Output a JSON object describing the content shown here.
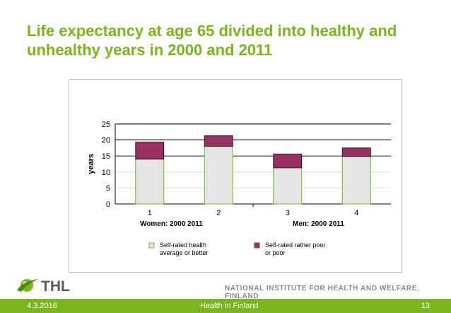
{
  "slide": {
    "title": "Life expectancy at age 65 divided into healthy and unhealthy years in 2000 and 2011"
  },
  "footer": {
    "date": "4.3.2016",
    "center_text": "Health in Finland",
    "page_number": "13",
    "org_name": "NATIONAL INSTITUTE FOR HEALTH AND WELFARE, FINLAND",
    "logo_text": "THL"
  },
  "colors": {
    "accent": "#7ab51d",
    "healthy_fill": "#e5e5e5",
    "healthy_stroke": "#7ab51d",
    "unhealthy_fill": "#9b3064"
  },
  "chart_data": {
    "type": "bar",
    "stacked": true,
    "categories": [
      "1",
      "2",
      "3",
      "4"
    ],
    "series": [
      {
        "name": "Self-rated health average or better",
        "values": [
          14,
          18,
          11.3,
          14.8
        ]
      },
      {
        "name": "Self-rated rather poor or poor",
        "values": [
          5.3,
          3.3,
          4.3,
          2.7
        ]
      }
    ],
    "ylabel": "years",
    "ylim": [
      0,
      25
    ],
    "yticks": [
      0,
      5,
      10,
      15,
      20,
      25
    ],
    "grid": true,
    "legend_position": "bottom",
    "group_labels": {
      "women": "Women:   2000   2011",
      "men": "Men:     2000      2011"
    }
  }
}
